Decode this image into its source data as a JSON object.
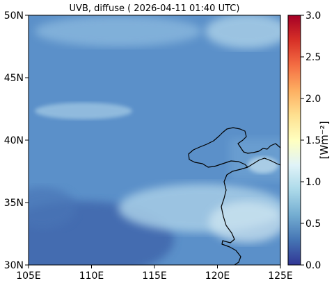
{
  "title": "UVB, diffuse ( 2026-04-11 01:40 UTC)",
  "map": {
    "x_ticks": [
      "105E",
      "110E",
      "115E",
      "120E",
      "125E"
    ],
    "y_ticks": [
      "30N",
      "35N",
      "40N",
      "45N",
      "50N"
    ],
    "lon_range": [
      105,
      125
    ],
    "lat_range": [
      30,
      50
    ]
  },
  "colorbar": {
    "label": "[Wm⁻²]",
    "ticks": [
      "0.0",
      "0.5",
      "1.0",
      "1.5",
      "2.0",
      "2.5",
      "3.0"
    ],
    "range": [
      0.0,
      3.0
    ],
    "colormap": "RdYlBu_r",
    "colors": [
      "#313695",
      "#4575b4",
      "#74add1",
      "#abd9e9",
      "#e0f3f8",
      "#ffffbf",
      "#fee090",
      "#fdae61",
      "#f46d43",
      "#d73027",
      "#a50026"
    ]
  },
  "field": {
    "base_value": 0.72,
    "base_color": "#5b90c9",
    "cloud_color": "#a7cde6",
    "bright_cloud_color": "#d2e8f2",
    "low_color": "#3f66ac"
  }
}
